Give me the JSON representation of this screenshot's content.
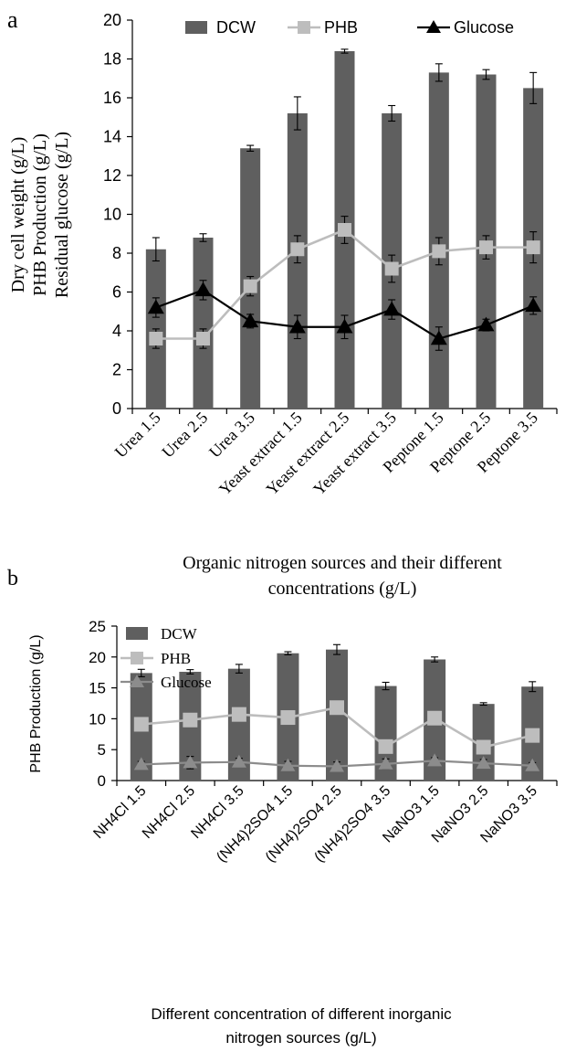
{
  "panels": [
    {
      "panel_label": "a",
      "xlabel_lines": [
        "Organic nitrogen sources and their  different",
        "concentrations (g/L)"
      ],
      "ylabel_lines": [
        "Dry cell weight  (g/L)",
        "PHB Production (g/L)",
        "Residual glucose (g/L)"
      ],
      "legend_position": "top-right",
      "colors": {
        "bar": "#5f5f5f",
        "phb": "#bdbdbd",
        "glucose": "#000000",
        "axis": "#000000"
      }
    },
    {
      "panel_label": "b",
      "xlabel_lines": [
        "Different concentration of different inorganic",
        "nitrogen sources  (g/L)"
      ],
      "ylabel_lines": [
        "PHB Production (g/L)"
      ],
      "legend_position": "top-left",
      "colors": {
        "bar": "#5f5f5f",
        "phb": "#bdbdbd",
        "glucose": "#8c8c8c",
        "axis": "#000000"
      }
    }
  ],
  "chart_data": [
    {
      "type": "bar",
      "title": "",
      "categories": [
        "Urea 1.5",
        "Urea 2.5",
        "Urea 3.5",
        "Yeast extract 1.5",
        "Yeast extract 2.5",
        "Yeast extract 3.5",
        "Peptone 1.5",
        "Peptone 2.5",
        "Peptone 3.5"
      ],
      "ylim": [
        0,
        20
      ],
      "yticks": [
        0,
        2,
        4,
        6,
        8,
        10,
        12,
        14,
        16,
        18,
        20
      ],
      "grid": false,
      "legend": "top-right",
      "series": [
        {
          "name": "DCW",
          "type": "bar",
          "values": [
            8.2,
            8.8,
            13.4,
            15.2,
            18.4,
            15.2,
            17.3,
            17.2,
            16.5
          ],
          "errors": [
            0.6,
            0.2,
            0.15,
            0.85,
            0.1,
            0.4,
            0.45,
            0.25,
            0.8
          ]
        },
        {
          "name": "PHB",
          "type": "line",
          "marker": "square",
          "values": [
            3.6,
            3.6,
            6.3,
            8.2,
            9.2,
            7.2,
            8.1,
            8.3,
            8.3
          ],
          "errors": [
            0.5,
            0.5,
            0.5,
            0.7,
            0.7,
            0.7,
            0.7,
            0.6,
            0.8
          ]
        },
        {
          "name": "Glucose",
          "type": "line",
          "marker": "triangle",
          "values": [
            5.2,
            6.1,
            4.5,
            4.2,
            4.2,
            5.1,
            3.6,
            4.3,
            5.3
          ],
          "errors": [
            0.5,
            0.5,
            0.35,
            0.6,
            0.6,
            0.5,
            0.6,
            0.3,
            0.45
          ]
        }
      ]
    },
    {
      "type": "bar",
      "title": "",
      "categories": [
        "NH4Cl 1.5",
        "NH4Cl 2.5",
        "NH4Cl 3.5",
        "(NH4)2SO4 1.5",
        "(NH4)2SO4 2.5",
        "(NH4)2SO4 3.5",
        "NaNO3 1.5",
        "NaNO3 2.5",
        "NaNO3 3.5"
      ],
      "ylim": [
        0,
        25
      ],
      "yticks": [
        0,
        5,
        10,
        15,
        20,
        25
      ],
      "grid": false,
      "legend": "top-left",
      "series": [
        {
          "name": "DCW",
          "type": "bar",
          "values": [
            17.4,
            17.6,
            18.1,
            20.6,
            21.2,
            15.3,
            19.6,
            12.4,
            15.2
          ],
          "errors": [
            0.6,
            0.35,
            0.7,
            0.25,
            0.8,
            0.6,
            0.4,
            0.2,
            0.8
          ]
        },
        {
          "name": "PHB",
          "type": "line",
          "marker": "square",
          "values": [
            9.1,
            9.8,
            10.7,
            10.2,
            11.8,
            5.5,
            10.1,
            5.4,
            7.3
          ],
          "errors": [
            0.6,
            0.7,
            0.8,
            0.7,
            0.8,
            0.8,
            0.5,
            0.8,
            0.5
          ]
        },
        {
          "name": "Glucose",
          "type": "line",
          "marker": "triangle",
          "values": [
            2.6,
            2.9,
            3.0,
            2.4,
            2.3,
            2.7,
            3.2,
            2.8,
            2.4
          ],
          "errors": [
            0.5,
            1.0,
            0.6,
            0.7,
            0.7,
            0.8,
            0.5,
            0.6,
            0.5
          ]
        }
      ]
    }
  ]
}
